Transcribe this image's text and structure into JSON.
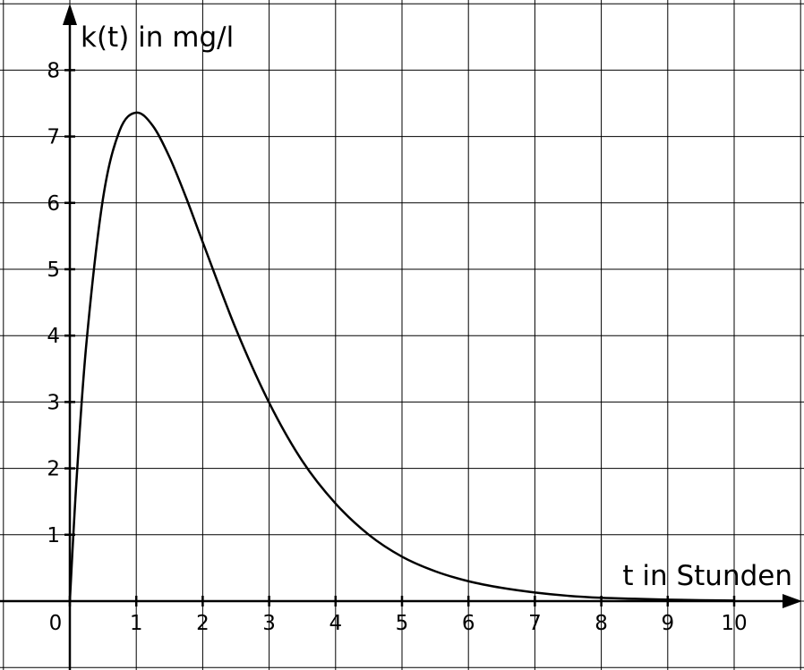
{
  "chart_data": {
    "type": "line",
    "title": "",
    "xlabel": "t in Stunden",
    "ylabel": "k(t) in mg/l",
    "xlim": [
      -1,
      11
    ],
    "ylim": [
      -1,
      9
    ],
    "grid": true,
    "x_ticks": [
      0,
      1,
      2,
      3,
      4,
      5,
      6,
      7,
      8,
      9,
      10
    ],
    "y_ticks": [
      1,
      2,
      3,
      4,
      5,
      6,
      7,
      8
    ],
    "x_tick_labels": [
      "0",
      "1",
      "2",
      "3",
      "4",
      "5",
      "6",
      "7",
      "8",
      "9",
      "10"
    ],
    "y_tick_labels": [
      "1",
      "2",
      "3",
      "4",
      "5",
      "6",
      "7",
      "8"
    ],
    "series": [
      {
        "x": [
          0,
          0.1,
          0.25,
          0.5,
          0.75,
          1,
          1.25,
          1.5,
          1.75,
          2,
          2.5,
          3,
          3.5,
          4,
          4.5,
          5,
          5.5,
          6,
          6.5,
          7,
          7.5,
          8,
          8.5,
          9,
          9.5,
          10
        ],
        "y": [
          0,
          1.81,
          3.89,
          6.07,
          7.09,
          7.36,
          7.16,
          6.69,
          6.08,
          5.41,
          4.1,
          2.99,
          2.11,
          1.47,
          1.0,
          0.67,
          0.45,
          0.3,
          0.2,
          0.13,
          0.08,
          0.05,
          0.035,
          0.022,
          0.014,
          0.009
        ]
      }
    ]
  }
}
